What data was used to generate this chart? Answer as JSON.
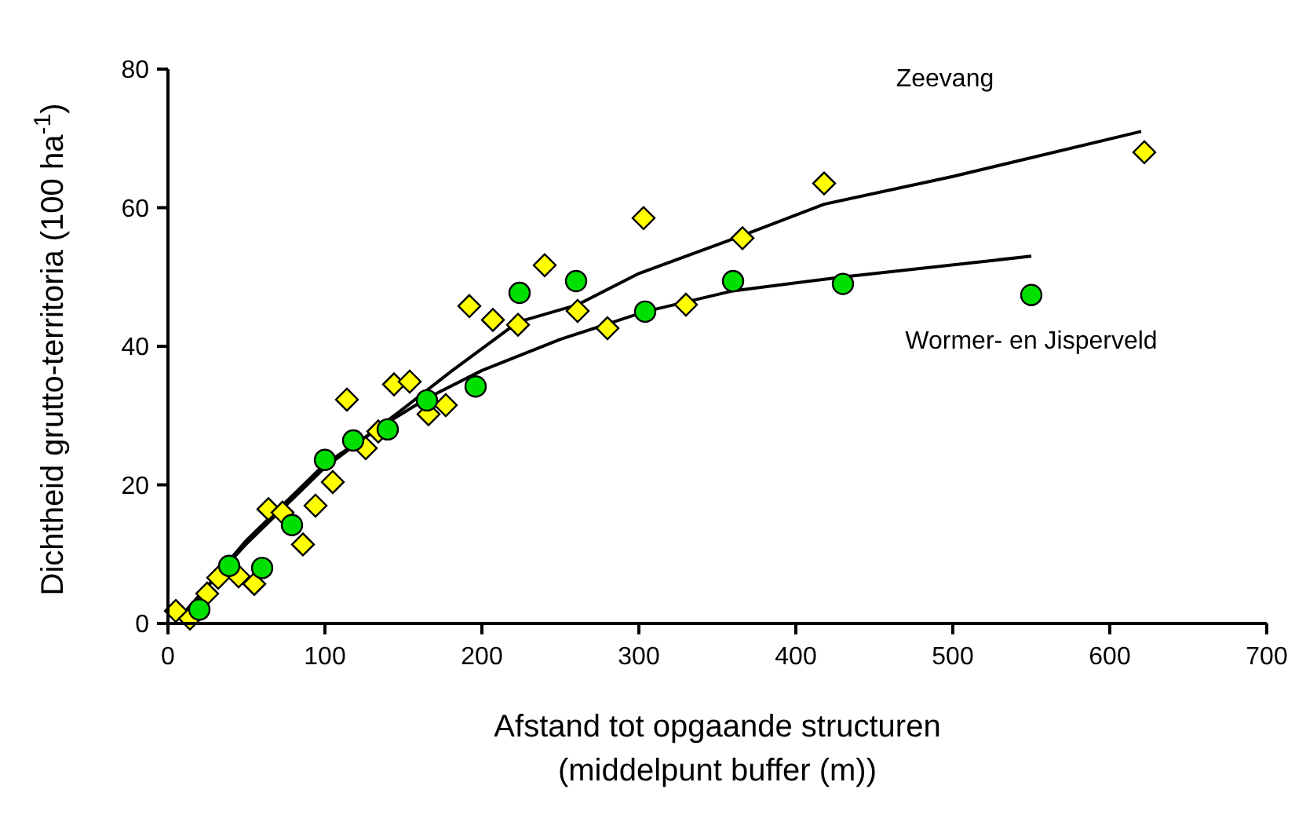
{
  "chart_data": {
    "type": "scatter",
    "xlabel": "Afstand tot opgaande structuren\n(middelpunt buffer (m))",
    "ylabel": "Dichtheid grutto-territoria (100 ha$^{-1}$)",
    "xlim": [
      0,
      700
    ],
    "ylim": [
      0,
      80
    ],
    "xticks": [
      0,
      100,
      200,
      300,
      400,
      500,
      600,
      700
    ],
    "yticks": [
      0,
      20,
      40,
      60,
      80
    ],
    "grid": false,
    "series": [
      {
        "name": "Zeevang",
        "type": "line",
        "color": "#000000",
        "marker": "none",
        "x": [
          10,
          20,
          50,
          100,
          150,
          180,
          223,
          261,
          300,
          366,
          418,
          500,
          620
        ],
        "values": [
          1.5,
          4,
          11.5,
          22.5,
          31,
          36.3,
          43.5,
          46,
          50.5,
          56,
          60.5,
          64.5,
          71
        ]
      },
      {
        "name": "Wormer- en Jisperveld",
        "type": "line",
        "color": "#000000",
        "marker": "none",
        "x": [
          10,
          20,
          50,
          100,
          140,
          165,
          200,
          250,
          304,
          360,
          430,
          550
        ],
        "values": [
          1.5,
          4,
          12,
          23,
          29,
          32.5,
          36.5,
          41,
          45,
          48,
          50,
          53
        ]
      },
      {
        "marker": "diamond",
        "color": "#ffff00",
        "x": [
          5,
          14,
          25,
          32,
          45,
          55,
          64,
          73,
          86,
          94,
          105,
          114,
          126,
          134,
          144,
          154,
          166,
          177,
          192,
          207,
          223,
          240,
          261,
          280,
          303,
          330,
          366,
          418,
          622
        ],
        "values": [
          1.8,
          0.7,
          4.3,
          6.6,
          6.8,
          5.7,
          16.5,
          16,
          11.4,
          17,
          20.4,
          32.3,
          25.3,
          27.7,
          34.5,
          34.9,
          30.2,
          31.5,
          45.8,
          43.8,
          43.1,
          51.7,
          45.1,
          42.6,
          58.5,
          46,
          55.6,
          63.5,
          68
        ]
      },
      {
        "marker": "circle",
        "color": "#00e000",
        "x": [
          20,
          39,
          60,
          79,
          100,
          118,
          140,
          165,
          196,
          224,
          260,
          304,
          360,
          430,
          550
        ],
        "values": [
          2,
          8.3,
          8,
          14.2,
          23.6,
          26.4,
          28,
          32.2,
          34.2,
          47.7,
          49.4,
          45,
          49.4,
          49,
          47.4
        ]
      }
    ]
  }
}
